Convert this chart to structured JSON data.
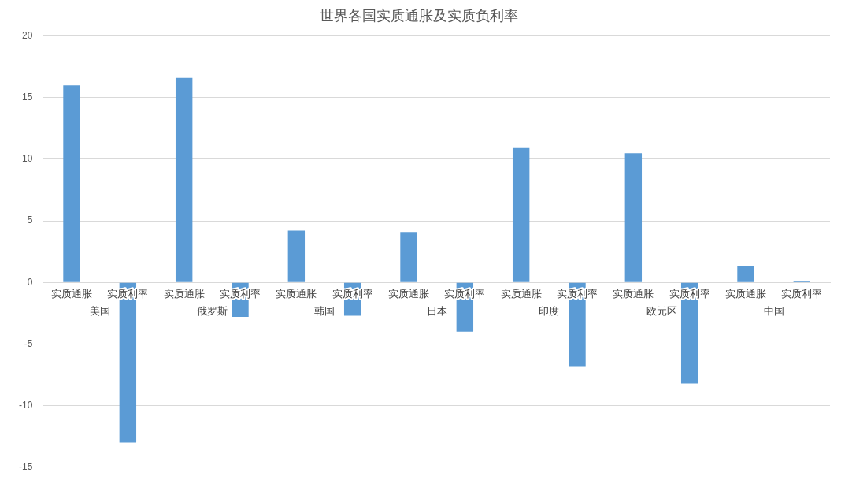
{
  "chart_data": {
    "type": "bar",
    "title": "世界各国实质通胀及实质负利率",
    "categories": [
      "实质通胀",
      "实质利率",
      "实质通胀",
      "实质利率",
      "实质通胀",
      "实质利率",
      "实质通胀",
      "实质利率",
      "实质通胀",
      "实质利率",
      "实质通胀",
      "实质利率",
      "实质通胀",
      "实质利率"
    ],
    "annotations": [
      "美国",
      "俄罗斯",
      "韩国",
      "日本",
      "印度",
      "欧元区",
      "中国"
    ],
    "values": [
      16.0,
      -13.0,
      16.6,
      -2.8,
      4.2,
      -2.7,
      4.1,
      -4.0,
      10.9,
      -6.8,
      10.5,
      -8.2,
      1.3,
      0.1
    ],
    "color": "#5b9bd5",
    "ylim": [
      -15,
      20
    ],
    "yticks": [
      -15,
      -10,
      -5,
      0,
      5,
      10,
      15,
      20
    ],
    "grid": "y",
    "legend": false
  }
}
